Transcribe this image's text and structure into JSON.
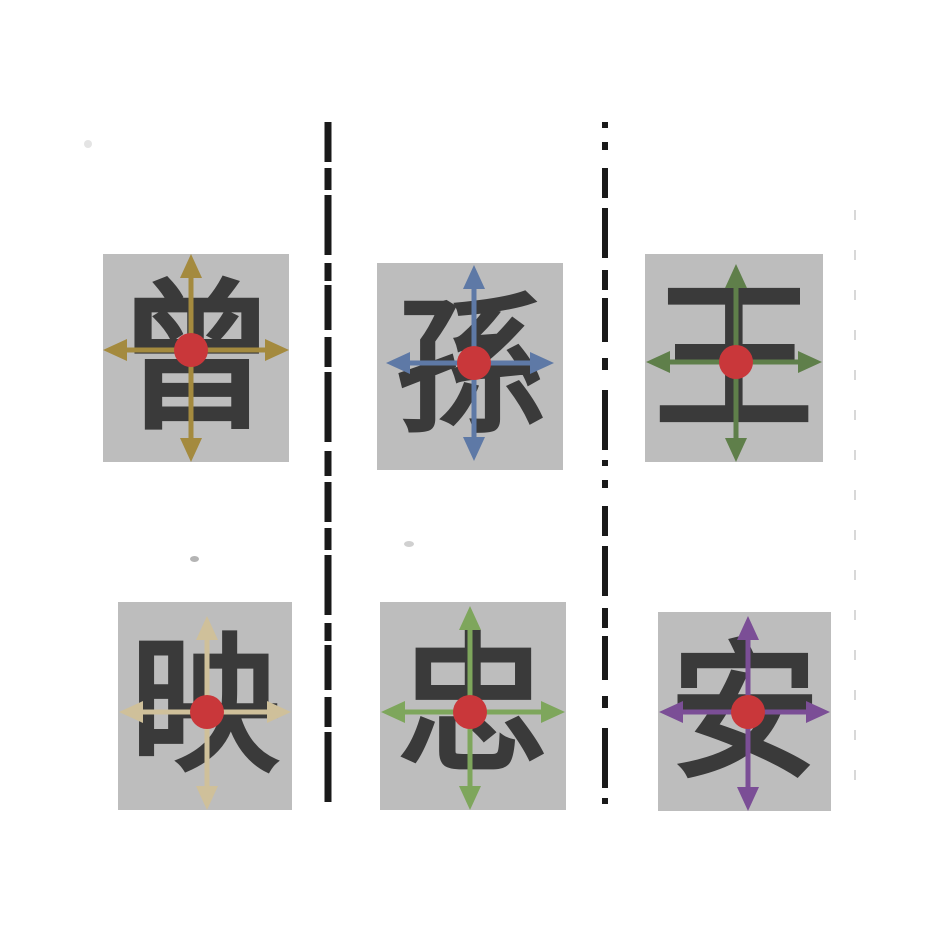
{
  "tiles": [
    {
      "char": "曾",
      "arrow_color": "#a48a3e",
      "center_color": "#c9373a"
    },
    {
      "char": "孫",
      "arrow_color": "#5e79a6",
      "center_color": "#c9373a"
    },
    {
      "char": "王",
      "arrow_color": "#5f7f4a",
      "center_color": "#c9373a"
    },
    {
      "char": "映",
      "arrow_color": "#cfc09a",
      "center_color": "#c9373a"
    },
    {
      "char": "忠",
      "arrow_color": "#7ea65c",
      "center_color": "#c9373a"
    },
    {
      "char": "安",
      "arrow_color": "#7b4e96",
      "center_color": "#c9373a"
    }
  ],
  "divider_color": "#1a1a1a",
  "tile_background": "#bdbdbd",
  "glyph_color": "#3a3a3a"
}
